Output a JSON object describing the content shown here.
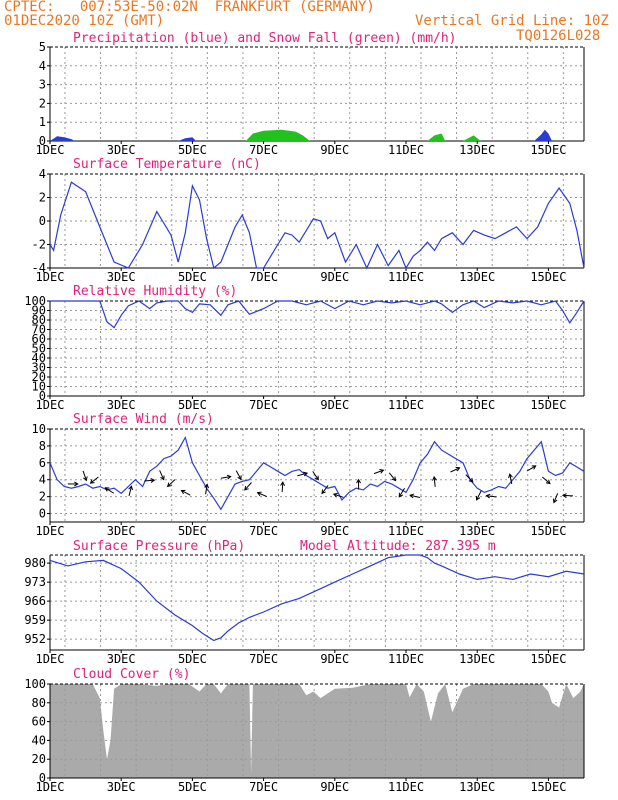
{
  "header": {
    "line1": "CPTEC:   007:53E-50:02N  FRANKFURT (GERMANY)",
    "line2": "01DEC2020 10Z (GMT)",
    "grid_note": "Vertical Grid Line: 10Z",
    "code": "TQ0126L028"
  },
  "colors": {
    "header": "#e87722",
    "title": "#e0217c",
    "line": "#2a3bd6",
    "snow": "#22c21e",
    "cloud": "#aaaaaa",
    "wind_arrow": "#000000"
  },
  "chart_data": [
    {
      "type": "area",
      "title": "Precipitation (blue) and Snow Fall (green) (mm/h)",
      "ylim": [
        0,
        5
      ],
      "yticks": [
        "0",
        "1",
        "2",
        "3",
        "4",
        "5"
      ],
      "xticks": [
        "1DEC",
        "3DEC",
        "5DEC",
        "7DEC",
        "9DEC",
        "11DEC",
        "13DEC",
        "15DEC"
      ],
      "xlim": [
        0,
        15
      ],
      "grid": true,
      "series": [
        {
          "name": "Precipitation",
          "x": [
            0.0,
            0.2,
            0.4,
            0.6,
            0.7,
            3.6,
            3.8,
            4.0,
            4.1,
            13.6,
            13.8,
            13.9,
            14.0,
            14.1
          ],
          "y": [
            0.0,
            0.25,
            0.2,
            0.1,
            0.0,
            0.0,
            0.15,
            0.2,
            0.0,
            0.0,
            0.35,
            0.6,
            0.4,
            0.0
          ]
        },
        {
          "name": "Snow Fall",
          "x": [
            5.5,
            5.7,
            6.0,
            6.5,
            6.9,
            7.1,
            7.3,
            10.6,
            10.8,
            11.0,
            11.1,
            11.6,
            11.9,
            12.1
          ],
          "y": [
            0.0,
            0.4,
            0.55,
            0.6,
            0.5,
            0.3,
            0.0,
            0.0,
            0.3,
            0.4,
            0.0,
            0.0,
            0.3,
            0.0
          ]
        }
      ]
    },
    {
      "type": "line",
      "title": "Surface Temperature (nC)",
      "ylim": [
        -4,
        4
      ],
      "yticks": [
        "-4",
        "-2",
        "0",
        "2",
        "4"
      ],
      "xticks": [
        "1DEC",
        "3DEC",
        "5DEC",
        "7DEC",
        "9DEC",
        "11DEC",
        "13DEC",
        "15DEC"
      ],
      "xlim": [
        0,
        15
      ],
      "grid": true,
      "x": [
        0,
        0.1,
        0.3,
        0.6,
        1.0,
        1.4,
        1.8,
        2.2,
        2.6,
        3.0,
        3.4,
        3.6,
        3.8,
        4.0,
        4.2,
        4.4,
        4.6,
        4.8,
        5.0,
        5.2,
        5.4,
        5.6,
        5.8,
        6.0,
        6.2,
        6.4,
        6.6,
        6.8,
        7.0,
        7.2,
        7.4,
        7.6,
        7.8,
        8.0,
        8.3,
        8.6,
        8.9,
        9.2,
        9.5,
        9.8,
        10.0,
        10.2,
        10.4,
        10.6,
        10.8,
        11.0,
        11.3,
        11.6,
        11.9,
        12.2,
        12.5,
        12.8,
        13.1,
        13.4,
        13.7,
        14.0,
        14.3,
        14.6,
        14.8,
        15.0
      ],
      "y": [
        -2.0,
        -2.5,
        0.5,
        3.3,
        2.5,
        -0.5,
        -3.5,
        -4,
        -2.0,
        0.8,
        -1.2,
        -3.5,
        -1.0,
        3.0,
        1.8,
        -1.5,
        -4,
        -3.5,
        -2.0,
        -0.5,
        0.5,
        -1.0,
        -4,
        -4,
        -3.0,
        -2.0,
        -1.0,
        -1.2,
        -1.8,
        -0.8,
        0.2,
        0.0,
        -1.5,
        -1.0,
        -3.5,
        -2.0,
        -4,
        -2.0,
        -3.8,
        -2.5,
        -4,
        -3.0,
        -2.5,
        -1.8,
        -2.5,
        -1.5,
        -1.0,
        -2.0,
        -0.8,
        -1.2,
        -1.5,
        -1.0,
        -0.5,
        -1.5,
        -0.5,
        1.5,
        2.8,
        1.5,
        -0.8,
        -4
      ]
    },
    {
      "type": "line",
      "title": "Relative Humidity (%)",
      "ylim": [
        0,
        100
      ],
      "yticks": [
        "0",
        "10",
        "20",
        "30",
        "40",
        "50",
        "60",
        "70",
        "80",
        "90",
        "100"
      ],
      "xticks": [
        "1DEC",
        "3DEC",
        "5DEC",
        "7DEC",
        "9DEC",
        "11DEC",
        "13DEC",
        "15DEC"
      ],
      "xlim": [
        0,
        15
      ],
      "grid": true,
      "x": [
        0,
        1.4,
        1.6,
        1.8,
        2.0,
        2.2,
        2.5,
        2.8,
        3.0,
        3.3,
        3.6,
        3.8,
        4.0,
        4.2,
        4.5,
        4.8,
        5.0,
        5.3,
        5.6,
        6.0,
        6.4,
        6.8,
        7.2,
        7.6,
        8.0,
        8.4,
        8.8,
        9.2,
        9.6,
        10.0,
        10.4,
        10.8,
        11.0,
        11.3,
        11.6,
        11.9,
        12.2,
        12.6,
        13.0,
        13.4,
        13.8,
        14.2,
        14.4,
        14.6,
        14.8,
        15.0
      ],
      "y": [
        100,
        100,
        78,
        72,
        85,
        95,
        100,
        92,
        98,
        100,
        100,
        92,
        88,
        97,
        96,
        85,
        96,
        100,
        86,
        92,
        100,
        100,
        96,
        100,
        92,
        100,
        96,
        100,
        98,
        100,
        96,
        100,
        97,
        88,
        96,
        100,
        93,
        100,
        98,
        100,
        96,
        100,
        90,
        77,
        88,
        100
      ]
    },
    {
      "type": "line",
      "title": "Surface Wind (m/s)",
      "ylim": [
        -1,
        10
      ],
      "yticks": [
        "0",
        "2",
        "4",
        "6",
        "8",
        "10"
      ],
      "xticks": [
        "1DEC",
        "3DEC",
        "5DEC",
        "7DEC",
        "9DEC",
        "11DEC",
        "13DEC",
        "15DEC"
      ],
      "xlim": [
        0,
        15
      ],
      "grid": true,
      "x": [
        0,
        0.2,
        0.4,
        0.6,
        0.8,
        1.0,
        1.2,
        1.4,
        1.6,
        1.8,
        2.0,
        2.2,
        2.4,
        2.6,
        2.8,
        3.0,
        3.2,
        3.4,
        3.6,
        3.8,
        4.0,
        4.2,
        4.4,
        4.6,
        4.8,
        5.0,
        5.2,
        5.4,
        5.6,
        5.8,
        6.0,
        6.2,
        6.4,
        6.6,
        6.8,
        7.0,
        7.2,
        7.4,
        7.6,
        7.8,
        8.0,
        8.2,
        8.4,
        8.6,
        8.8,
        9.0,
        9.2,
        9.4,
        9.6,
        9.8,
        10.0,
        10.2,
        10.4,
        10.6,
        10.8,
        11.0,
        11.2,
        11.4,
        11.6,
        11.8,
        12.0,
        12.2,
        12.4,
        12.6,
        12.8,
        13.0,
        13.2,
        13.4,
        13.6,
        13.8,
        14.0,
        14.2,
        14.4,
        14.6,
        14.8,
        15.0
      ],
      "y": [
        6.0,
        4.0,
        3.2,
        3.0,
        3.2,
        3.5,
        3.0,
        3.2,
        2.8,
        3.0,
        2.4,
        3.2,
        4.0,
        3.2,
        5.0,
        5.6,
        6.5,
        6.8,
        7.5,
        9.0,
        6.0,
        4.5,
        3.0,
        1.8,
        0.5,
        2.0,
        3.5,
        3.8,
        4.0,
        5.0,
        6.0,
        5.5,
        5.0,
        4.5,
        5.0,
        5.2,
        4.5,
        4.0,
        3.5,
        3.0,
        3.2,
        1.6,
        2.5,
        3.0,
        2.8,
        3.5,
        3.2,
        3.8,
        3.5,
        3.0,
        2.5,
        4.0,
        6.0,
        7.0,
        8.5,
        7.5,
        7.0,
        6.5,
        6.0,
        4.0,
        3.0,
        2.5,
        2.8,
        3.2,
        3.0,
        4.0,
        5.0,
        6.5,
        7.5,
        8.5,
        5.0,
        4.5,
        4.8,
        6.0,
        5.5,
        5.0
      ]
    },
    {
      "type": "line",
      "title": "Surface Pressure (hPa)",
      "annotation": "Model Altitude: 287.395 m",
      "ylim": [
        948,
        983
      ],
      "yticks": [
        "952",
        "959",
        "966",
        "973",
        "980"
      ],
      "xticks": [
        "1DEC",
        "3DEC",
        "5DEC",
        "7DEC",
        "9DEC",
        "11DEC",
        "13DEC",
        "15DEC"
      ],
      "xlim": [
        0,
        15
      ],
      "grid": true,
      "x": [
        0,
        0.5,
        1.0,
        1.5,
        2.0,
        2.5,
        3.0,
        3.5,
        4.0,
        4.3,
        4.6,
        4.8,
        5.0,
        5.3,
        5.6,
        6.0,
        6.5,
        7.0,
        7.5,
        8.0,
        8.5,
        9.0,
        9.5,
        10.0,
        10.2,
        10.4,
        10.6,
        10.8,
        11.0,
        11.5,
        12.0,
        12.5,
        13.0,
        13.5,
        14.0,
        14.5,
        15.0
      ],
      "y": [
        981,
        979,
        980.5,
        981,
        978,
        973,
        966,
        961,
        957,
        954,
        951.5,
        952.5,
        955,
        958,
        960,
        962,
        965,
        967,
        970,
        973,
        976,
        979,
        982,
        984,
        984,
        983,
        982,
        980,
        979,
        976,
        974,
        975,
        974,
        976,
        975,
        977,
        976
      ]
    },
    {
      "type": "area",
      "title": "Cloud Cover (%)",
      "ylim": [
        0,
        100
      ],
      "yticks": [
        "0",
        "20",
        "40",
        "60",
        "80",
        "100"
      ],
      "xticks": [
        "1DEC",
        "3DEC",
        "5DEC",
        "7DEC",
        "9DEC",
        "11DEC",
        "13DEC",
        "15DEC"
      ],
      "xlim": [
        0,
        15
      ],
      "grid": true,
      "x": [
        0,
        1.2,
        1.4,
        1.5,
        1.6,
        1.7,
        1.8,
        2.0,
        2.2,
        2.5,
        3.0,
        3.3,
        3.6,
        3.9,
        4.2,
        4.4,
        4.6,
        4.8,
        5.0,
        5.2,
        5.4,
        5.6,
        5.65,
        5.7,
        5.8,
        6.0,
        6.5,
        7.0,
        7.2,
        7.4,
        7.6,
        7.8,
        8.0,
        8.5,
        9.0,
        9.5,
        10.0,
        10.1,
        10.3,
        10.5,
        10.7,
        10.9,
        11.1,
        11.3,
        11.6,
        11.9,
        12.2,
        12.6,
        13.0,
        13.4,
        13.8,
        14.0,
        14.1,
        14.3,
        14.5,
        14.7,
        14.9,
        15.0
      ],
      "y": [
        100,
        100,
        85,
        50,
        20,
        40,
        95,
        100,
        100,
        100,
        98,
        100,
        100,
        100,
        92,
        100,
        100,
        90,
        100,
        100,
        100,
        100,
        5,
        100,
        100,
        100,
        100,
        100,
        88,
        92,
        85,
        90,
        95,
        96,
        100,
        100,
        100,
        86,
        100,
        92,
        60,
        90,
        100,
        70,
        95,
        100,
        100,
        100,
        100,
        100,
        100,
        92,
        80,
        75,
        100,
        85,
        92,
        100
      ]
    }
  ]
}
